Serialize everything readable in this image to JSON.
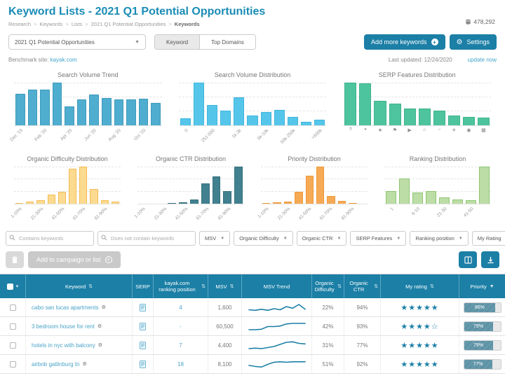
{
  "header": {
    "title": "Keyword Lists - 2021 Q1 Potential Opportunities",
    "breadcrumb": [
      "Research",
      "Keywords",
      "Lists",
      "2021 Q1 Potential Opportunities",
      "Keywords"
    ],
    "keyword_count": "478,292"
  },
  "controls": {
    "list_selector_value": "2021 Q1 Potential Opportunities",
    "view_toggle": {
      "keyword": "Keyword",
      "top_domains": "Top Domains",
      "selected": "Keyword"
    },
    "add_keywords_label": "Add more keywords",
    "settings_label": "Settings",
    "benchmark_label": "Benchmark site:",
    "benchmark_site": "kayak.com",
    "last_updated": "Last updated: 12/24/2020",
    "update_now_label": "update now"
  },
  "colors": {
    "primary": "#1b7fa6",
    "title_teal": "#1a8cb5",
    "link": "#44a5c9",
    "priority_fill": "#5e92a5"
  },
  "chart_data": [
    {
      "type": "bar",
      "title": "Search Volume Trend",
      "categories": [
        "Dec '19",
        "",
        "Feb '20",
        "",
        "Apr '20",
        "",
        "Jun '20",
        "",
        "Aug '20",
        "",
        "Oct '20",
        ""
      ],
      "values": [
        70,
        80,
        79,
        95,
        42,
        57,
        68,
        60,
        58,
        58,
        59,
        50
      ],
      "ylim": [
        0,
        100
      ],
      "grid": "dashed",
      "color": "#4FAECF",
      "border": "#3E9ABB"
    },
    {
      "type": "bar",
      "title": "Search Volume Distribution",
      "categories": [
        "0",
        "",
        "251-500",
        "",
        "1k-3k",
        "",
        "5k-10k",
        "",
        "50k-250k",
        "",
        ">500k"
      ],
      "values": [
        15,
        95,
        45,
        32,
        62,
        22,
        30,
        35,
        18,
        8,
        12
      ],
      "ylim": [
        0,
        100
      ],
      "grid": "dashed",
      "color": "#55C6EA",
      "border": "#3FB5DC"
    },
    {
      "type": "bar",
      "title": "SERP Features Distribution",
      "categories": [
        "question",
        "comment",
        "star",
        "tag",
        "video",
        "hotel",
        "minus",
        "flight",
        "location",
        "image"
      ],
      "icon_labels": true,
      "values": [
        95,
        93,
        55,
        48,
        38,
        37,
        33,
        22,
        19,
        17
      ],
      "ylim": [
        0,
        100
      ],
      "grid": "dashed",
      "color": "#4EC49E",
      "border": "#3DB28D"
    },
    {
      "type": "bar",
      "title": "Organic Difficulty Distribution",
      "categories": [
        "1-10%",
        "",
        "21-30%",
        "",
        "41-50%",
        "",
        "61-70%",
        "",
        "81-90%",
        ""
      ],
      "values": [
        2,
        6,
        9,
        23,
        30,
        88,
        93,
        37,
        9,
        5
      ],
      "ylim": [
        0,
        100
      ],
      "grid": "dashed",
      "color": "#FCDA8F",
      "border": "#F3BC55"
    },
    {
      "type": "bar",
      "title": "Organic CTR Distribution",
      "categories": [
        "1-10%",
        "",
        "21-30%",
        "",
        "41-50%",
        "",
        "61-70%",
        "",
        "81-90%",
        ""
      ],
      "values": [
        0,
        0,
        0,
        2,
        3,
        10,
        48,
        65,
        30,
        88
      ],
      "ylim": [
        0,
        100
      ],
      "grid": "dashed",
      "color": "#41818F",
      "border": "#366F7C"
    },
    {
      "type": "bar",
      "title": "Priority Distribution",
      "categories": [
        "1-10%",
        "",
        "21-30%",
        "",
        "41-50%",
        "",
        "61-70%",
        "",
        "81-90%",
        ""
      ],
      "values": [
        2,
        3,
        6,
        30,
        72,
        95,
        20,
        8,
        2,
        0
      ],
      "ylim": [
        0,
        100
      ],
      "grid": "dashed",
      "color": "#F6AA55",
      "border": "#EF9838"
    },
    {
      "type": "bar",
      "title": "Ranking Distribution",
      "categories": [
        "1",
        "",
        "6-10",
        "",
        "21-30",
        "",
        "41-50",
        ""
      ],
      "values": [
        30,
        62,
        28,
        30,
        15,
        10,
        8,
        90
      ],
      "ylim": [
        0,
        100
      ],
      "grid": "dashed",
      "color": "#BCDDA6",
      "border": "#8FC573"
    }
  ],
  "filters": {
    "contains_placeholder": "Contains keywords",
    "not_contains_placeholder": "Does not contain keywords",
    "dropdowns": [
      "MSV",
      "Organic Difficulty",
      "Organic CTR",
      "SERP Features",
      "Ranking position",
      "My Rating",
      "Priority"
    ]
  },
  "actions": {
    "add_to_campaign_label": "Add to campaign or list"
  },
  "table": {
    "columns": [
      {
        "label": "Keyword",
        "sort": "both"
      },
      {
        "label": "SERP",
        "sort": "none"
      },
      {
        "label": "kayak.com ranking position",
        "sort": "both"
      },
      {
        "label": "MSV",
        "sort": "both"
      },
      {
        "label": "MSV Trend",
        "sort": "none"
      },
      {
        "label": "Organic Difficulty",
        "sort": "both"
      },
      {
        "label": "Organic CTR",
        "sort": "both"
      },
      {
        "label": "My rating",
        "sort": "both"
      },
      {
        "label": "Priority",
        "sort": "desc"
      }
    ],
    "rows": [
      {
        "keyword": "cabo san lucas apartments",
        "rank": "4",
        "msv": "1,600",
        "trend": [
          3,
          2.5,
          3.5,
          2.5,
          4,
          3,
          6,
          4.5,
          8,
          3.5
        ],
        "difficulty": "22%",
        "ctr": "94%",
        "rating": 5,
        "priority": 86,
        "priority_label": "86%"
      },
      {
        "keyword": "3 bedroom house for rent",
        "rank": "-",
        "msv": "60,500",
        "trend": [
          2,
          2,
          2.5,
          5,
          5,
          5.5,
          7.5,
          8,
          8,
          8
        ],
        "difficulty": "42%",
        "ctr": "93%",
        "rating": 4,
        "priority": 79,
        "priority_label": "79%"
      },
      {
        "keyword": "hotels in nyc with balcony",
        "rank": "7",
        "msv": "4,400",
        "trend": [
          2,
          2.5,
          2,
          3,
          4,
          6,
          8,
          8.5,
          7,
          6.5
        ],
        "difficulty": "31%",
        "ctr": "77%",
        "rating": 5,
        "priority": 79,
        "priority_label": "79%"
      },
      {
        "keyword": "airbnb gatlinburg tn",
        "rank": "18",
        "msv": "8,100",
        "trend": [
          4,
          3,
          2.5,
          5,
          7,
          7.5,
          7,
          7.5,
          7.5,
          7.5
        ],
        "difficulty": "51%",
        "ctr": "92%",
        "rating": 5,
        "priority": 77,
        "priority_label": "77%"
      }
    ]
  }
}
